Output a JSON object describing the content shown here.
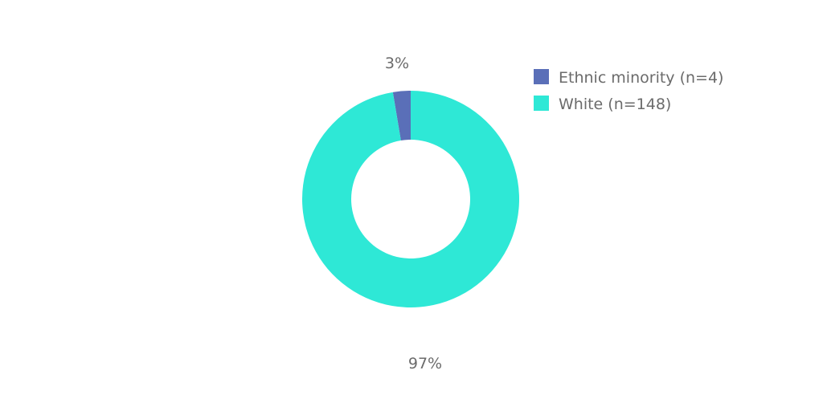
{
  "chart_data": {
    "type": "pie",
    "donut": true,
    "title": "",
    "slices": [
      {
        "label": "Ethnic minority (n=4)",
        "value": 4,
        "percent_label": "3%",
        "color": "#5a6fb8"
      },
      {
        "label": "White (n=148)",
        "value": 148,
        "percent_label": "97%",
        "color": "#2ee8d6"
      }
    ],
    "legend_position": "top-right"
  },
  "colors": {
    "text": "#6b6b6b",
    "background": "#ffffff"
  }
}
